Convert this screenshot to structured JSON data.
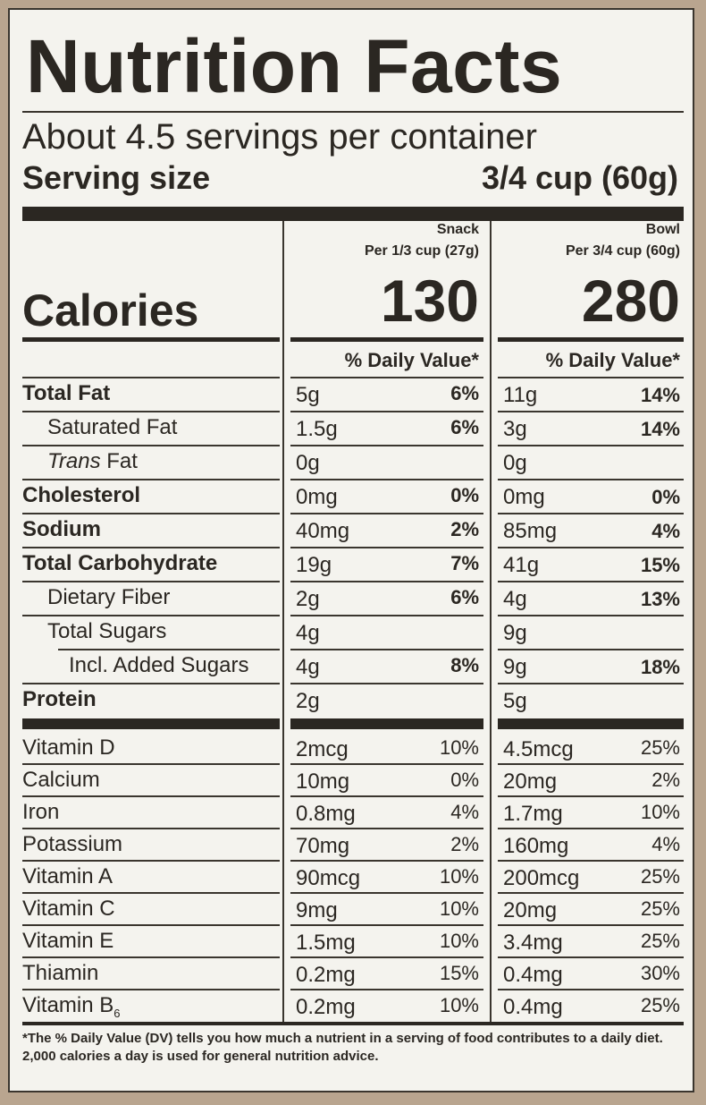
{
  "title": "Nutrition Facts",
  "servings_per_container": "About 4.5 servings per container",
  "serving_size_label": "Serving size",
  "serving_size_value": "3/4 cup (60g)",
  "calories_label": "Calories",
  "columns": [
    {
      "name": "Snack",
      "per": "Per 1/3 cup (27g)",
      "calories": "130",
      "dv_header": "% Daily Value*"
    },
    {
      "name": "Bowl",
      "per": "Per 3/4 cup (60g)",
      "calories": "280",
      "dv_header": "% Daily Value*"
    }
  ],
  "nutrients": [
    {
      "label": "Total Fat",
      "style": "bold",
      "indent": 0,
      "snack_amount": "5g",
      "snack_dv": "6%",
      "bowl_amount": "11g",
      "bowl_dv": "14%"
    },
    {
      "label": "Saturated Fat",
      "style": "normal",
      "indent": 1,
      "snack_amount": "1.5g",
      "snack_dv": "6%",
      "bowl_amount": "3g",
      "bowl_dv": "14%"
    },
    {
      "label_italic": "Trans",
      "label": " Fat",
      "style": "normal",
      "indent": 1,
      "snack_amount": "0g",
      "snack_dv": "",
      "bowl_amount": "0g",
      "bowl_dv": ""
    },
    {
      "label": "Cholesterol",
      "style": "bold",
      "indent": 0,
      "snack_amount": "0mg",
      "snack_dv": "0%",
      "bowl_amount": "0mg",
      "bowl_dv": "0%"
    },
    {
      "label": "Sodium",
      "style": "bold",
      "indent": 0,
      "snack_amount": "40mg",
      "snack_dv": "2%",
      "bowl_amount": "85mg",
      "bowl_dv": "4%"
    },
    {
      "label": "Total Carbohydrate",
      "style": "bold",
      "indent": 0,
      "snack_amount": "19g",
      "snack_dv": "7%",
      "bowl_amount": "41g",
      "bowl_dv": "15%"
    },
    {
      "label": "Dietary Fiber",
      "style": "normal",
      "indent": 1,
      "snack_amount": "2g",
      "snack_dv": "6%",
      "bowl_amount": "4g",
      "bowl_dv": "13%"
    },
    {
      "label": "Total Sugars",
      "style": "normal",
      "indent": 1,
      "snack_amount": "4g",
      "snack_dv": "",
      "bowl_amount": "9g",
      "bowl_dv": ""
    },
    {
      "label": "Incl. Added Sugars",
      "style": "normal",
      "indent": 2,
      "snack_amount": "4g",
      "snack_dv": "8%",
      "bowl_amount": "9g",
      "bowl_dv": "18%"
    },
    {
      "label": "Protein",
      "style": "bold",
      "indent": 0,
      "snack_amount": "2g",
      "snack_dv": "",
      "bowl_amount": "5g",
      "bowl_dv": ""
    }
  ],
  "vitamins": [
    {
      "label": "Vitamin D",
      "snack_amount": "2mcg",
      "snack_dv": "10%",
      "bowl_amount": "4.5mcg",
      "bowl_dv": "25%"
    },
    {
      "label": "Calcium",
      "snack_amount": "10mg",
      "snack_dv": "0%",
      "bowl_amount": "20mg",
      "bowl_dv": "2%"
    },
    {
      "label": "Iron",
      "snack_amount": "0.8mg",
      "snack_dv": "4%",
      "bowl_amount": "1.7mg",
      "bowl_dv": "10%"
    },
    {
      "label": "Potassium",
      "snack_amount": "70mg",
      "snack_dv": "2%",
      "bowl_amount": "160mg",
      "bowl_dv": "4%"
    },
    {
      "label": "Vitamin A",
      "snack_amount": "90mcg",
      "snack_dv": "10%",
      "bowl_amount": "200mcg",
      "bowl_dv": "25%"
    },
    {
      "label": "Vitamin C",
      "snack_amount": "9mg",
      "snack_dv": "10%",
      "bowl_amount": "20mg",
      "bowl_dv": "25%"
    },
    {
      "label": "Vitamin E",
      "snack_amount": "1.5mg",
      "snack_dv": "10%",
      "bowl_amount": "3.4mg",
      "bowl_dv": "25%"
    },
    {
      "label": "Thiamin",
      "snack_amount": "0.2mg",
      "snack_dv": "15%",
      "bowl_amount": "0.4mg",
      "bowl_dv": "30%"
    },
    {
      "label": "Vitamin B",
      "label_sub": "6",
      "snack_amount": "0.2mg",
      "snack_dv": "10%",
      "bowl_amount": "0.4mg",
      "bowl_dv": "25%"
    }
  ],
  "footnote": "*The % Daily Value (DV) tells you how much a nutrient in a serving of food contributes to a daily diet. 2,000 calories a day is used for general nutrition advice."
}
